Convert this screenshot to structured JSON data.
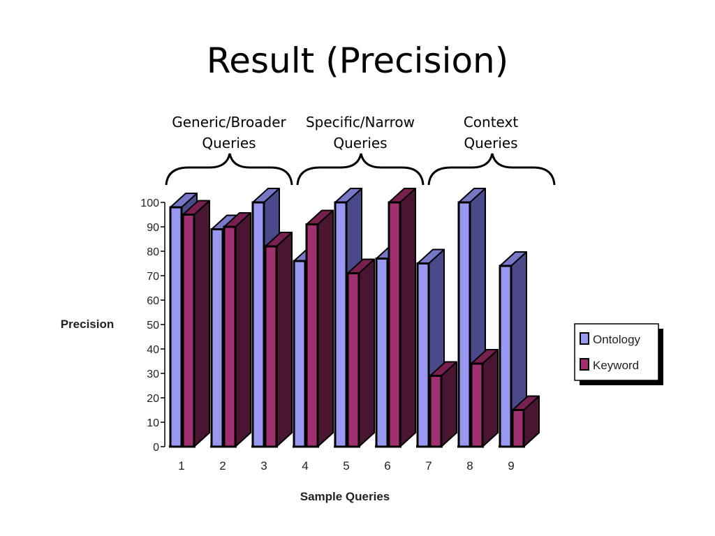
{
  "slide": {
    "title": "Result (Precision)"
  },
  "groups": [
    {
      "line1": "Generic/Broader",
      "line2": "Queries"
    },
    {
      "line1": "Specific/Narrow",
      "line2": "Queries"
    },
    {
      "line1": "Context",
      "line2": "Queries"
    }
  ],
  "colors": {
    "ontology_front": "#9898f0",
    "ontology_side": "#4a4a8a",
    "ontology_top": "#7878c8",
    "keyword_front": "#a03070",
    "keyword_side": "#4a1530",
    "keyword_top": "#7a2050"
  },
  "chart_data": {
    "type": "bar",
    "title": "",
    "xlabel": "Sample Queries",
    "ylabel": "Precision",
    "ylim": [
      0,
      100
    ],
    "yticks": [
      0,
      10,
      20,
      30,
      40,
      50,
      60,
      70,
      80,
      90,
      100
    ],
    "categories": [
      "1",
      "2",
      "3",
      "4",
      "5",
      "6",
      "7",
      "8",
      "9"
    ],
    "series": [
      {
        "name": "Ontology",
        "values": [
          98,
          89,
          100,
          76,
          100,
          77,
          75,
          100,
          74
        ]
      },
      {
        "name": "Keyword",
        "values": [
          95,
          90,
          82,
          91,
          71,
          100,
          29,
          34,
          15
        ]
      }
    ],
    "legend": "right",
    "grid": false
  }
}
